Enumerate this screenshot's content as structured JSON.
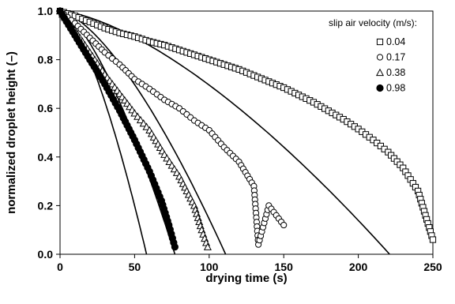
{
  "chart_data": {
    "type": "scatter",
    "xlabel": "drying time (s)",
    "ylabel": "normalized droplet height (–)",
    "xlim": [
      0,
      250
    ],
    "ylim": [
      0,
      1
    ],
    "x_ticks": [
      "0",
      "50",
      "100",
      "150",
      "200",
      "250"
    ],
    "y_ticks": [
      "0.0",
      "0.2",
      "0.4",
      "0.6",
      "0.8",
      "1.0"
    ],
    "legend": {
      "title": "slip air velocity (m/s):",
      "position": "top-right"
    },
    "series": [
      {
        "name": "0.04",
        "marker": "square",
        "points": [
          [
            0,
            1.0
          ],
          [
            10,
            0.98
          ],
          [
            20,
            0.955
          ],
          [
            30,
            0.93
          ],
          [
            40,
            0.91
          ],
          [
            50,
            0.895
          ],
          [
            60,
            0.875
          ],
          [
            70,
            0.86
          ],
          [
            80,
            0.84
          ],
          [
            90,
            0.82
          ],
          [
            100,
            0.8
          ],
          [
            110,
            0.78
          ],
          [
            120,
            0.76
          ],
          [
            130,
            0.735
          ],
          [
            140,
            0.71
          ],
          [
            150,
            0.685
          ],
          [
            160,
            0.655
          ],
          [
            170,
            0.625
          ],
          [
            180,
            0.59
          ],
          [
            190,
            0.555
          ],
          [
            200,
            0.515
          ],
          [
            210,
            0.47
          ],
          [
            220,
            0.42
          ],
          [
            230,
            0.355
          ],
          [
            240,
            0.26
          ],
          [
            250,
            0.06
          ]
        ],
        "model_end": 221
      },
      {
        "name": "0.17",
        "marker": "circle",
        "points": [
          [
            0,
            1.0
          ],
          [
            10,
            0.95
          ],
          [
            20,
            0.89
          ],
          [
            30,
            0.83
          ],
          [
            40,
            0.78
          ],
          [
            50,
            0.72
          ],
          [
            60,
            0.68
          ],
          [
            70,
            0.635
          ],
          [
            80,
            0.6
          ],
          [
            90,
            0.55
          ],
          [
            100,
            0.51
          ],
          [
            110,
            0.44
          ],
          [
            120,
            0.38
          ],
          [
            130,
            0.28
          ],
          [
            140,
            0.2
          ],
          [
            150,
            0.12
          ],
          [
            133,
            0.04
          ]
        ],
        "model_end": 111
      },
      {
        "name": "0.38",
        "marker": "triangle",
        "points": [
          [
            0,
            1.0
          ],
          [
            10,
            0.92
          ],
          [
            20,
            0.83
          ],
          [
            30,
            0.74
          ],
          [
            40,
            0.66
          ],
          [
            50,
            0.58
          ],
          [
            60,
            0.51
          ],
          [
            70,
            0.41
          ],
          [
            80,
            0.32
          ],
          [
            90,
            0.2
          ],
          [
            95,
            0.1
          ],
          [
            99,
            0.03
          ]
        ],
        "model_end": 77
      },
      {
        "name": "0.98",
        "marker": "filled-circle",
        "points": [
          [
            0,
            1.0
          ],
          [
            10,
            0.9
          ],
          [
            20,
            0.8
          ],
          [
            30,
            0.7
          ],
          [
            40,
            0.59
          ],
          [
            50,
            0.47
          ],
          [
            60,
            0.34
          ],
          [
            68,
            0.22
          ],
          [
            73,
            0.12
          ],
          [
            77,
            0.03
          ]
        ],
        "model_end": 58
      }
    ]
  }
}
